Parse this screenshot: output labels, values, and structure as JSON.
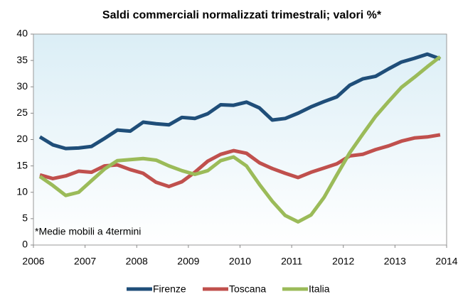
{
  "chart_data": {
    "type": "line",
    "title": "Saldi commerciali normalizzati trimestrali; valori %*",
    "annotation": "*Medie mobili a 4termini",
    "x": [
      2006.125,
      2006.375,
      2006.625,
      2006.875,
      2007.125,
      2007.375,
      2007.625,
      2007.875,
      2008.125,
      2008.375,
      2008.625,
      2008.875,
      2009.125,
      2009.375,
      2009.625,
      2009.875,
      2010.125,
      2010.375,
      2010.625,
      2010.875,
      2011.125,
      2011.375,
      2011.625,
      2011.875,
      2012.125,
      2012.375,
      2012.625,
      2012.875,
      2013.125,
      2013.375,
      2013.625,
      2013.875
    ],
    "series": [
      {
        "name": "Firenze",
        "color": "#1f4e79",
        "values": [
          20.5,
          19.0,
          18.3,
          18.4,
          18.7,
          20.2,
          21.8,
          21.6,
          23.3,
          23.0,
          22.8,
          24.2,
          24.0,
          24.9,
          26.6,
          26.5,
          27.1,
          26.0,
          23.7,
          24.0,
          25.0,
          26.2,
          27.2,
          28.1,
          30.3,
          31.5,
          32.0,
          33.4,
          34.7,
          35.4,
          36.2,
          35.3
        ]
      },
      {
        "name": "Toscana",
        "color": "#c0504d",
        "values": [
          13.3,
          12.6,
          13.1,
          14.0,
          13.8,
          15.0,
          15.2,
          14.3,
          13.6,
          11.9,
          11.1,
          12.0,
          13.8,
          15.9,
          17.2,
          17.9,
          17.4,
          15.6,
          14.5,
          13.6,
          12.8,
          13.8,
          14.6,
          15.4,
          16.9,
          17.2,
          18.1,
          18.8,
          19.7,
          20.3,
          20.5,
          20.9
        ]
      },
      {
        "name": "Italia",
        "color": "#9bbb59",
        "values": [
          13.0,
          11.3,
          9.4,
          10.0,
          12.2,
          14.4,
          16.0,
          16.2,
          16.4,
          16.1,
          15.0,
          14.1,
          13.4,
          14.1,
          16.0,
          16.7,
          15.0,
          11.5,
          8.3,
          5.6,
          4.4,
          5.7,
          9.0,
          13.3,
          17.5,
          21.0,
          24.4,
          27.2,
          29.9,
          31.8,
          33.8,
          35.7
        ]
      }
    ],
    "xlim": [
      2006,
      2014
    ],
    "xticks": [
      2006,
      2007,
      2008,
      2009,
      2010,
      2011,
      2012,
      2013,
      2014
    ],
    "ylim": [
      0,
      40
    ],
    "yticks": [
      0,
      5,
      10,
      15,
      20,
      25,
      30,
      35,
      40
    ],
    "legend": "bottom"
  }
}
